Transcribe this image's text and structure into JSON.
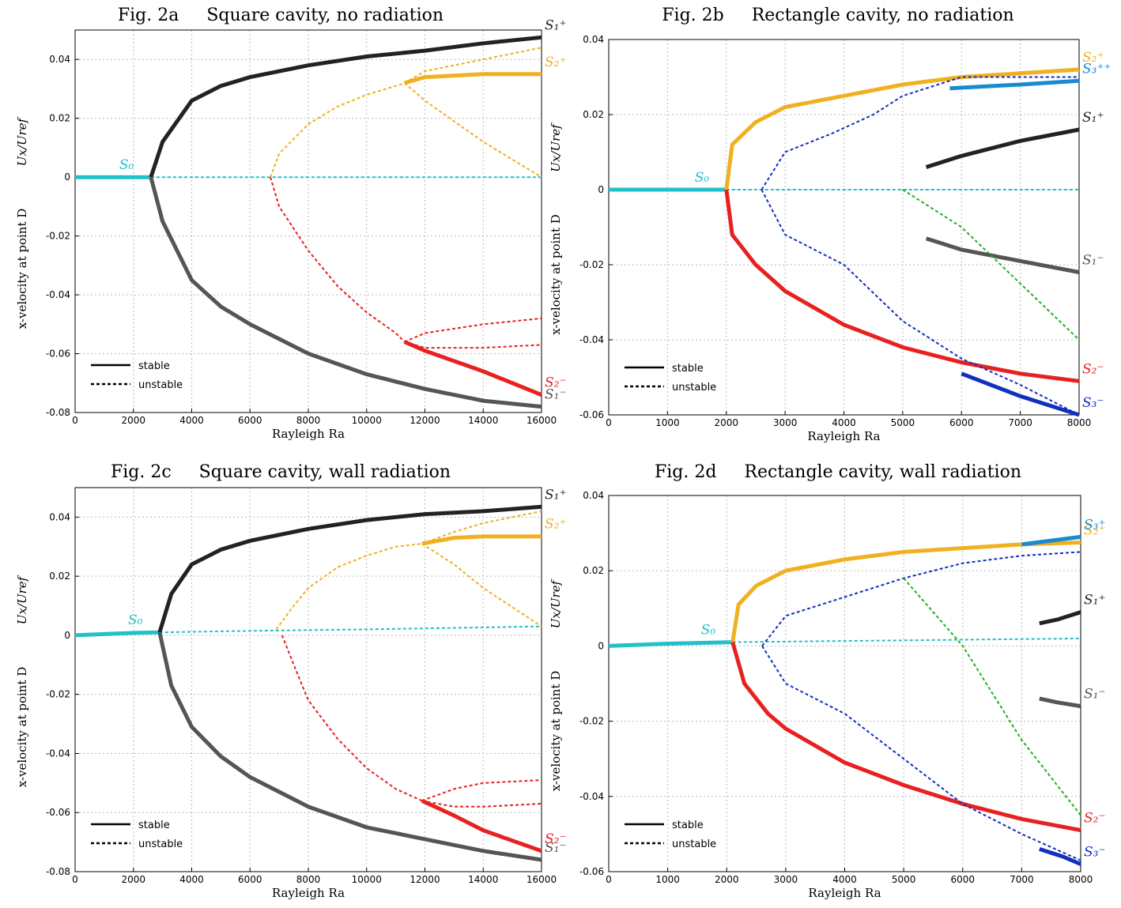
{
  "chart_data": [
    {
      "type": "line",
      "title": "Fig. 2a     Square cavity, no radiation",
      "xlabel": "Rayleigh Ra",
      "ylabel": "x-velocity at point D",
      "ylabel2": "Ux/Uref",
      "xlim": [
        0,
        16000
      ],
      "ylim": [
        -0.08,
        0.05
      ],
      "xticks": [
        0,
        2000,
        4000,
        6000,
        8000,
        10000,
        12000,
        14000,
        16000
      ],
      "yticks": [
        -0.08,
        -0.06,
        -0.04,
        -0.02,
        0,
        0.02,
        0.04
      ],
      "grid": true,
      "legend": {
        "corner": "lower left",
        "entries": [
          {
            "label": "stable",
            "style": "solid"
          },
          {
            "label": "unstable",
            "style": "dashed"
          }
        ]
      },
      "series": [
        {
          "color": "#22c0c8",
          "style": "solid",
          "label": "S₀",
          "x": [
            0,
            2600
          ],
          "values": [
            0,
            0
          ]
        },
        {
          "color": "#22c0c8",
          "style": "dashed",
          "x": [
            2600,
            16000
          ],
          "values": [
            0,
            0
          ]
        },
        {
          "color": "#222222",
          "style": "solid",
          "label": "S₁⁺",
          "x": [
            2600,
            3000,
            4000,
            5000,
            6000,
            8000,
            10000,
            12000,
            14000,
            16000
          ],
          "values": [
            0,
            0.012,
            0.026,
            0.031,
            0.034,
            0.038,
            0.041,
            0.043,
            0.0455,
            0.0475
          ]
        },
        {
          "color": "#555555",
          "style": "solid",
          "label": "S₁⁻",
          "x": [
            2600,
            3000,
            4000,
            5000,
            6000,
            8000,
            10000,
            12000,
            14000,
            16000
          ],
          "values": [
            0,
            -0.015,
            -0.035,
            -0.044,
            -0.05,
            -0.06,
            -0.067,
            -0.072,
            -0.076,
            -0.078
          ]
        },
        {
          "color": "#f0b020",
          "style": "dashed",
          "x": [
            6700,
            7000,
            8000,
            9000,
            10000,
            11000,
            11300
          ],
          "values": [
            0,
            0.008,
            0.018,
            0.024,
            0.028,
            0.031,
            0.032
          ]
        },
        {
          "color": "#f0b020",
          "style": "solid",
          "label": "S₂⁺",
          "x": [
            11300,
            12000,
            14000,
            16000
          ],
          "values": [
            0.032,
            0.034,
            0.035,
            0.035
          ]
        },
        {
          "color": "#f0b020",
          "style": "dashed",
          "x": [
            11300,
            12000,
            14000,
            16000
          ],
          "values": [
            0.032,
            0.036,
            0.04,
            0.044
          ]
        },
        {
          "color": "#f0b020",
          "style": "dashed",
          "x": [
            11300,
            12000,
            14000,
            16000
          ],
          "values": [
            0.032,
            0.026,
            0.012,
            0
          ]
        },
        {
          "color": "#e82020",
          "style": "dashed",
          "x": [
            6700,
            7000,
            8000,
            9000,
            10000,
            11000,
            11300
          ],
          "values": [
            0,
            -0.01,
            -0.025,
            -0.037,
            -0.046,
            -0.053,
            -0.056
          ]
        },
        {
          "color": "#e82020",
          "style": "solid",
          "label": "S₂⁻",
          "x": [
            11300,
            12000,
            14000,
            16000
          ],
          "values": [
            -0.056,
            -0.059,
            -0.066,
            -0.074
          ]
        },
        {
          "color": "#e82020",
          "style": "dashed",
          "x": [
            11300,
            12000,
            14000,
            16000
          ],
          "values": [
            -0.056,
            -0.053,
            -0.05,
            -0.048
          ]
        },
        {
          "color": "#e82020",
          "style": "dashed",
          "x": [
            11300,
            12000,
            14000,
            16000
          ],
          "values": [
            -0.056,
            -0.058,
            -0.058,
            -0.057
          ]
        }
      ]
    },
    {
      "type": "line",
      "title": "Fig. 2b     Rectangle cavity, no radiation",
      "xlabel": "Rayleigh Ra",
      "ylabel": "x-velocity at point D",
      "ylabel2": "Ux/Uref",
      "xlim": [
        0,
        8000
      ],
      "ylim": [
        -0.06,
        0.04
      ],
      "xticks": [
        0,
        1000,
        2000,
        3000,
        4000,
        5000,
        6000,
        7000,
        8000
      ],
      "yticks": [
        -0.06,
        -0.04,
        -0.02,
        0,
        0.02,
        0.04
      ],
      "grid": true,
      "legend": {
        "corner": "lower left",
        "entries": [
          {
            "label": "stable",
            "style": "solid"
          },
          {
            "label": "unstable",
            "style": "dashed"
          }
        ]
      },
      "series": [
        {
          "color": "#22c0c8",
          "style": "solid",
          "label": "S₀",
          "x": [
            0,
            2000
          ],
          "values": [
            0,
            0
          ]
        },
        {
          "color": "#22c0c8",
          "style": "dashed",
          "x": [
            2000,
            8000
          ],
          "values": [
            0,
            0
          ]
        },
        {
          "color": "#f0b020",
          "style": "solid",
          "label": "S₂⁺",
          "x": [
            2000,
            2100,
            2500,
            3000,
            4000,
            5000,
            6000,
            7000,
            8000
          ],
          "values": [
            0,
            0.012,
            0.018,
            0.022,
            0.025,
            0.028,
            0.03,
            0.031,
            0.032
          ]
        },
        {
          "color": "#e82020",
          "style": "solid",
          "label": "S₂⁻",
          "x": [
            2000,
            2100,
            2500,
            3000,
            4000,
            5000,
            6000,
            7000,
            8000
          ],
          "values": [
            0,
            -0.012,
            -0.02,
            -0.027,
            -0.036,
            -0.042,
            -0.046,
            -0.049,
            -0.051
          ]
        },
        {
          "color": "#1030c0",
          "style": "dashed",
          "x": [
            2600,
            3000,
            3800,
            4500,
            5000,
            6000,
            8000
          ],
          "values": [
            0,
            0.01,
            0.015,
            0.02,
            0.025,
            0.03,
            0.03
          ]
        },
        {
          "color": "#1030c0",
          "style": "dashed",
          "x": [
            2600,
            3000,
            4000,
            5000,
            6000,
            7000,
            8000
          ],
          "values": [
            0,
            -0.012,
            -0.02,
            -0.035,
            -0.045,
            -0.052,
            -0.06
          ]
        },
        {
          "color": "#222222",
          "style": "solid",
          "label": "S₁⁺",
          "x": [
            5400,
            6000,
            7000,
            8000
          ],
          "values": [
            0.006,
            0.009,
            0.013,
            0.016
          ]
        },
        {
          "color": "#555555",
          "style": "solid",
          "label": "S₁⁻",
          "x": [
            5400,
            6000,
            7000,
            8000
          ],
          "values": [
            -0.013,
            -0.016,
            -0.019,
            -0.022
          ]
        },
        {
          "color": "#1030c0",
          "style": "solid",
          "label": "S₃⁻",
          "x": [
            6000,
            7000,
            8000
          ],
          "values": [
            -0.049,
            -0.055,
            -0.06
          ]
        },
        {
          "color": "#1a8ad0",
          "style": "solid",
          "label": "S₃⁺⁺",
          "x": [
            5800,
            7000,
            8000
          ],
          "values": [
            0.027,
            0.028,
            0.029
          ]
        },
        {
          "color": "#20b020",
          "style": "dashed",
          "x": [
            5000,
            6000,
            7000,
            8000
          ],
          "values": [
            0,
            -0.01,
            -0.025,
            -0.04
          ]
        }
      ]
    },
    {
      "type": "line",
      "title": "Fig. 2c     Square cavity, wall radiation",
      "xlabel": "Rayleigh Ra",
      "ylabel": "x-velocity at point D",
      "ylabel2": "Ux/Uref",
      "xlim": [
        0,
        16000
      ],
      "ylim": [
        -0.08,
        0.05
      ],
      "xticks": [
        0,
        2000,
        4000,
        6000,
        8000,
        10000,
        12000,
        14000,
        16000
      ],
      "yticks": [
        -0.08,
        -0.06,
        -0.04,
        -0.02,
        0,
        0.02,
        0.04
      ],
      "grid": true,
      "legend": {
        "corner": "lower left",
        "entries": [
          {
            "label": "stable",
            "style": "solid"
          },
          {
            "label": "unstable",
            "style": "dashed"
          }
        ]
      },
      "series": [
        {
          "color": "#22c0c8",
          "style": "solid",
          "label": "S₀",
          "x": [
            0,
            1000,
            2000,
            2900
          ],
          "values": [
            0,
            0.0004,
            0.0008,
            0.001
          ]
        },
        {
          "color": "#22c0c8",
          "style": "dashed",
          "x": [
            2900,
            6000,
            10000,
            16000
          ],
          "values": [
            0.001,
            0.0015,
            0.002,
            0.003
          ]
        },
        {
          "color": "#222222",
          "style": "solid",
          "label": "S₁⁺",
          "x": [
            2900,
            3300,
            4000,
            5000,
            6000,
            8000,
            10000,
            12000,
            14000,
            16000
          ],
          "values": [
            0.001,
            0.014,
            0.024,
            0.029,
            0.032,
            0.036,
            0.039,
            0.041,
            0.042,
            0.0435
          ]
        },
        {
          "color": "#555555",
          "style": "solid",
          "label": "S₁⁻",
          "x": [
            2900,
            3300,
            4000,
            5000,
            6000,
            8000,
            10000,
            12000,
            14000,
            16000
          ],
          "values": [
            0.001,
            -0.017,
            -0.031,
            -0.041,
            -0.048,
            -0.058,
            -0.065,
            -0.069,
            -0.073,
            -0.076
          ]
        },
        {
          "color": "#f0b020",
          "style": "dashed",
          "x": [
            6900,
            7500,
            8000,
            9000,
            10000,
            11000,
            11900
          ],
          "values": [
            0.002,
            0.01,
            0.016,
            0.023,
            0.027,
            0.03,
            0.031
          ]
        },
        {
          "color": "#f0b020",
          "style": "solid",
          "label": "S₂⁺",
          "x": [
            11900,
            13000,
            14000,
            16000
          ],
          "values": [
            0.031,
            0.033,
            0.0335,
            0.0335
          ]
        },
        {
          "color": "#f0b020",
          "style": "dashed",
          "x": [
            11900,
            13000,
            14000,
            16000
          ],
          "values": [
            0.031,
            0.035,
            0.038,
            0.042
          ]
        },
        {
          "color": "#f0b020",
          "style": "dashed",
          "x": [
            11900,
            13000,
            14000,
            16000
          ],
          "values": [
            0.031,
            0.024,
            0.016,
            0.003
          ]
        },
        {
          "color": "#e82020",
          "style": "dashed",
          "x": [
            7100,
            7500,
            8000,
            9000,
            10000,
            11000,
            11900
          ],
          "values": [
            0,
            -0.01,
            -0.022,
            -0.035,
            -0.045,
            -0.052,
            -0.056
          ]
        },
        {
          "color": "#e82020",
          "style": "solid",
          "label": "S₂⁻",
          "x": [
            11900,
            13000,
            14000,
            16000
          ],
          "values": [
            -0.056,
            -0.061,
            -0.066,
            -0.073
          ]
        },
        {
          "color": "#e82020",
          "style": "dashed",
          "x": [
            11900,
            13000,
            14000,
            16000
          ],
          "values": [
            -0.056,
            -0.052,
            -0.05,
            -0.049
          ]
        },
        {
          "color": "#e82020",
          "style": "dashed",
          "x": [
            11900,
            13000,
            14000,
            16000
          ],
          "values": [
            -0.056,
            -0.058,
            -0.058,
            -0.057
          ]
        }
      ]
    },
    {
      "type": "line",
      "title": "Fig. 2d     Rectangle cavity, wall radiation",
      "xlabel": "Rayleigh Ra",
      "ylabel": "x-velocity at point D",
      "ylabel2": "Ux/Uref",
      "xlim": [
        0,
        8000
      ],
      "ylim": [
        -0.06,
        0.04
      ],
      "xticks": [
        0,
        1000,
        2000,
        3000,
        4000,
        5000,
        6000,
        7000,
        8000
      ],
      "yticks": [
        -0.06,
        -0.04,
        -0.02,
        0,
        0.02,
        0.04
      ],
      "grid": true,
      "legend": {
        "corner": "lower left",
        "entries": [
          {
            "label": "stable",
            "style": "solid"
          },
          {
            "label": "unstable",
            "style": "dashed"
          }
        ]
      },
      "series": [
        {
          "color": "#22c0c8",
          "style": "solid",
          "label": "S₀",
          "x": [
            0,
            1000,
            2100
          ],
          "values": [
            0,
            0.0006,
            0.001
          ]
        },
        {
          "color": "#22c0c8",
          "style": "dashed",
          "x": [
            2100,
            5000,
            8000
          ],
          "values": [
            0.001,
            0.0015,
            0.002
          ]
        },
        {
          "color": "#f0b020",
          "style": "solid",
          "label": "S₂⁺",
          "x": [
            2100,
            2200,
            2500,
            3000,
            4000,
            5000,
            6000,
            7000,
            8000
          ],
          "values": [
            0.001,
            0.011,
            0.016,
            0.02,
            0.023,
            0.025,
            0.026,
            0.027,
            0.0275
          ]
        },
        {
          "color": "#e82020",
          "style": "solid",
          "label": "S₂⁻",
          "x": [
            2100,
            2300,
            2700,
            3000,
            4000,
            5000,
            6000,
            7000,
            8000
          ],
          "values": [
            0.001,
            -0.01,
            -0.018,
            -0.022,
            -0.031,
            -0.037,
            -0.042,
            -0.046,
            -0.049
          ]
        },
        {
          "color": "#1030c0",
          "style": "dashed",
          "x": [
            2600,
            3000,
            4000,
            5000,
            6000,
            7000,
            8000
          ],
          "values": [
            0,
            0.008,
            0.013,
            0.018,
            0.022,
            0.024,
            0.025
          ]
        },
        {
          "color": "#1030c0",
          "style": "dashed",
          "x": [
            2600,
            3000,
            4000,
            5000,
            6000,
            7000,
            8000
          ],
          "values": [
            0,
            -0.01,
            -0.018,
            -0.03,
            -0.042,
            -0.05,
            -0.057
          ]
        },
        {
          "color": "#222222",
          "style": "solid",
          "label": "S₁⁺",
          "x": [
            7300,
            7600,
            8000
          ],
          "values": [
            0.006,
            0.007,
            0.009
          ]
        },
        {
          "color": "#555555",
          "style": "solid",
          "label": "S₁⁻",
          "x": [
            7300,
            7600,
            8000
          ],
          "values": [
            -0.014,
            -0.015,
            -0.016
          ]
        },
        {
          "color": "#1030c0",
          "style": "solid",
          "label": "S₃⁻",
          "x": [
            7300,
            7700,
            8000
          ],
          "values": [
            -0.054,
            -0.056,
            -0.058
          ]
        },
        {
          "color": "#1a8ad0",
          "style": "solid",
          "label": "S₃⁺",
          "x": [
            7000,
            7500,
            8000
          ],
          "values": [
            0.027,
            0.028,
            0.029
          ]
        },
        {
          "color": "#20b020",
          "style": "dashed",
          "x": [
            5000,
            6000,
            7000,
            8000
          ],
          "values": [
            0.018,
            0.0,
            -0.025,
            -0.045
          ]
        }
      ]
    }
  ]
}
